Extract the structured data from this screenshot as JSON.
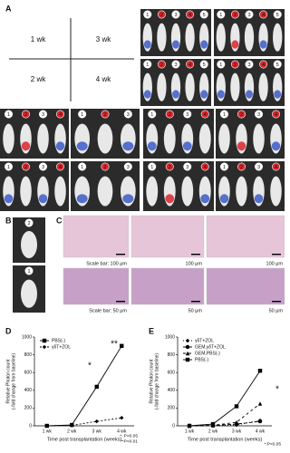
{
  "panel_a": {
    "label": "A",
    "grid_labels": [
      "1 wk",
      "3 wk",
      "2 wk",
      "4 wk"
    ],
    "images": [
      {
        "markers": [
          "1",
          "2",
          "3",
          "4",
          "5"
        ]
      },
      {
        "markers": [
          "1",
          "2",
          "3",
          "4",
          "5"
        ]
      },
      {
        "markers": [
          "1",
          "2",
          "3",
          "4",
          "5"
        ]
      },
      {
        "markers": [
          "1",
          "2",
          "3",
          "4",
          "5"
        ]
      },
      {
        "markers": [
          "1",
          "2",
          "3",
          "4"
        ]
      },
      {
        "markers": [
          "1",
          "2",
          "3"
        ]
      },
      {
        "markers": [
          "1",
          "2",
          "3",
          "4"
        ]
      },
      {
        "markers": [
          "1",
          "2",
          "3",
          "4"
        ]
      },
      {
        "markers": [
          "1",
          "2",
          "3",
          "4"
        ]
      },
      {
        "markers": [
          "1",
          "2",
          "3"
        ]
      },
      {
        "markers": [
          "1",
          "2",
          "3",
          "4"
        ]
      },
      {
        "markers": [
          "1",
          "2",
          "3",
          "4"
        ]
      }
    ]
  },
  "panel_b": {
    "label": "B",
    "images": [
      {
        "markers": [
          "2"
        ]
      },
      {
        "markers": [
          "1"
        ]
      }
    ]
  },
  "panel_c": {
    "label": "C",
    "scale_labels": [
      "Scale bar: 100 μm",
      "100 μm",
      "100 μm",
      "Scale bar: 50 μm",
      "50 μm",
      "50 μm"
    ]
  },
  "chart_data": [
    {
      "type": "line",
      "label": "D",
      "y_title": [
        "Relative Photon count",
        "(-fold change from baseline)"
      ],
      "x_title": "Time post transplantation (weeks)",
      "categories": [
        "1 wk",
        "2 wk",
        "3 wk",
        "4 wk"
      ],
      "ylim": [
        0,
        1000
      ],
      "yticks": [
        0,
        200,
        400,
        600,
        800,
        1000
      ],
      "series": [
        {
          "name": "PBS(-)",
          "color": "#000000",
          "marker": "square",
          "dash": "none",
          "values": [
            0,
            10,
            440,
            900
          ]
        },
        {
          "name": "γδT+ZOL",
          "color": "#000000",
          "marker": "diamond",
          "dash": "2,2",
          "values": [
            0,
            5,
            50,
            90
          ]
        }
      ],
      "annotations": [
        "*",
        "**"
      ],
      "footnotes": [
        "*: P<0.05",
        "**P<0.01"
      ]
    },
    {
      "type": "line",
      "label": "E",
      "y_title": [
        "Relative Photon count",
        "(-fold change from baseline)"
      ],
      "x_title": "Time post transplantation (weeks)",
      "categories": [
        "1 wk",
        "2 wk",
        "3 wk",
        "4 wk"
      ],
      "ylim": [
        0,
        1000
      ],
      "yticks": [
        0,
        200,
        400,
        600,
        800,
        1000
      ],
      "series": [
        {
          "name": "γδT+ZOL",
          "color": "#000000",
          "marker": "diamond",
          "dash": "1,2",
          "values": [
            0,
            2,
            10,
            60
          ]
        },
        {
          "name": "GEM,γδT+ZOL",
          "color": "#000000",
          "marker": "circle",
          "dash": "4,2",
          "values": [
            0,
            3,
            20,
            50
          ]
        },
        {
          "name": "GEM,PBS(-)",
          "color": "#000000",
          "marker": "triangle",
          "dash": "3,3",
          "values": [
            0,
            5,
            40,
            250
          ]
        },
        {
          "name": "PBS(-)",
          "color": "#000000",
          "marker": "square",
          "dash": "none",
          "values": [
            0,
            20,
            220,
            620
          ]
        }
      ],
      "annotations": [
        "*"
      ],
      "footnotes": [
        "*:P<0.05"
      ]
    }
  ]
}
